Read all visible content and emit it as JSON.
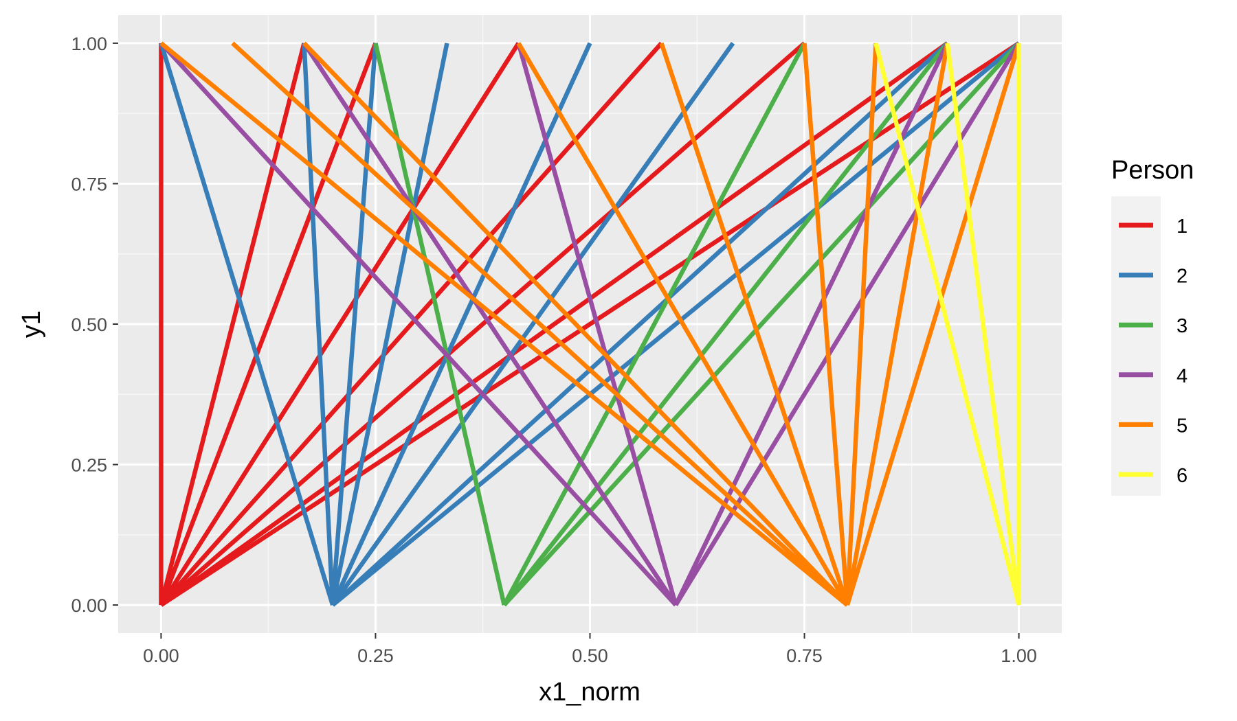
{
  "chart_data": {
    "type": "line",
    "title": "",
    "xlabel": "x1_norm",
    "ylabel": "y1",
    "xlim": [
      -0.05,
      1.05
    ],
    "ylim": [
      -0.05,
      1.05
    ],
    "x_ticks": [
      0,
      0.25,
      0.5,
      0.75,
      1
    ],
    "x_tick_labels": [
      "0.00",
      "0.25",
      "0.50",
      "0.75",
      "1.00"
    ],
    "y_ticks": [
      0,
      0.25,
      0.5,
      0.75,
      1
    ],
    "y_tick_labels": [
      "0.00",
      "0.25",
      "0.50",
      "0.75",
      "1.00"
    ],
    "grid": true,
    "background": "#ebebeb",
    "legend": {
      "title": "Person",
      "position": "right"
    },
    "series": [
      {
        "name": "1",
        "color": "#e41a1c",
        "segments": [
          [
            [
              0,
              0
            ],
            [
              0,
              1
            ]
          ],
          [
            [
              0,
              0
            ],
            [
              0.1667,
              1
            ]
          ],
          [
            [
              0,
              0
            ],
            [
              0.25,
              1
            ]
          ],
          [
            [
              0,
              0
            ],
            [
              0.4167,
              1
            ]
          ],
          [
            [
              0,
              0
            ],
            [
              0.5833,
              1
            ]
          ],
          [
            [
              0,
              0
            ],
            [
              0.75,
              1
            ]
          ],
          [
            [
              0,
              0
            ],
            [
              0.9167,
              1
            ]
          ],
          [
            [
              0,
              0
            ],
            [
              1,
              1
            ]
          ]
        ]
      },
      {
        "name": "2",
        "color": "#377eb8",
        "segments": [
          [
            [
              0.2,
              0
            ],
            [
              0,
              1
            ]
          ],
          [
            [
              0.2,
              0
            ],
            [
              0.1667,
              1
            ]
          ],
          [
            [
              0.2,
              0
            ],
            [
              0.25,
              1
            ]
          ],
          [
            [
              0.2,
              0
            ],
            [
              0.3333,
              1
            ]
          ],
          [
            [
              0.2,
              0
            ],
            [
              0.5,
              1
            ]
          ],
          [
            [
              0.2,
              0
            ],
            [
              0.6667,
              1
            ]
          ],
          [
            [
              0.2,
              0
            ],
            [
              0.9167,
              1
            ]
          ],
          [
            [
              0.2,
              0
            ],
            [
              1,
              1
            ]
          ]
        ]
      },
      {
        "name": "3",
        "color": "#4daf4a",
        "segments": [
          [
            [
              0.4,
              0
            ],
            [
              0.25,
              1
            ]
          ],
          [
            [
              0.4,
              0
            ],
            [
              0.75,
              1
            ]
          ],
          [
            [
              0.4,
              0
            ],
            [
              0.9167,
              1
            ]
          ],
          [
            [
              0.4,
              0
            ],
            [
              1,
              1
            ]
          ]
        ]
      },
      {
        "name": "4",
        "color": "#984ea3",
        "segments": [
          [
            [
              0.6,
              0
            ],
            [
              0,
              1
            ]
          ],
          [
            [
              0.6,
              0
            ],
            [
              0.1667,
              1
            ]
          ],
          [
            [
              0.6,
              0
            ],
            [
              0.4167,
              1
            ]
          ],
          [
            [
              0.6,
              0
            ],
            [
              0.9167,
              1
            ]
          ],
          [
            [
              0.6,
              0
            ],
            [
              1,
              1
            ]
          ]
        ]
      },
      {
        "name": "5",
        "color": "#ff7f00",
        "segments": [
          [
            [
              0.8,
              0
            ],
            [
              0,
              1
            ]
          ],
          [
            [
              0.8,
              0
            ],
            [
              0.0833,
              1
            ]
          ],
          [
            [
              0.8,
              0
            ],
            [
              0.1667,
              1
            ]
          ],
          [
            [
              0.8,
              0
            ],
            [
              0.4167,
              1
            ]
          ],
          [
            [
              0.8,
              0
            ],
            [
              0.5833,
              1
            ]
          ],
          [
            [
              0.8,
              0
            ],
            [
              0.75,
              1
            ]
          ],
          [
            [
              0.8,
              0
            ],
            [
              0.8333,
              1
            ]
          ],
          [
            [
              0.8,
              0
            ],
            [
              0.9167,
              1
            ]
          ],
          [
            [
              0.8,
              0
            ],
            [
              1,
              1
            ]
          ]
        ]
      },
      {
        "name": "6",
        "color": "#ffff33",
        "segments": [
          [
            [
              1,
              0
            ],
            [
              0.8333,
              1
            ]
          ],
          [
            [
              1,
              0
            ],
            [
              0.9167,
              1
            ]
          ],
          [
            [
              1,
              0
            ],
            [
              1,
              1
            ]
          ]
        ]
      }
    ]
  }
}
